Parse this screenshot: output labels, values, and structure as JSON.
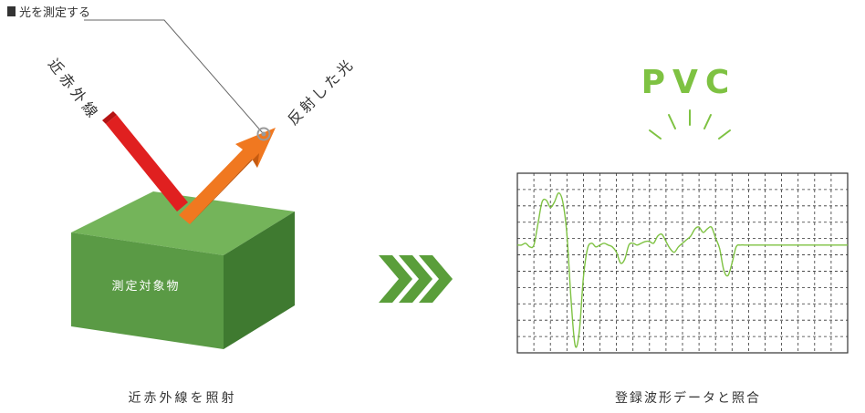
{
  "labels": {
    "measure": "光を測定する",
    "incident": "近赤外線",
    "reflected": "反射した光",
    "object": "測定対象物",
    "result": "PVC",
    "caption_left": "近赤外線を照射",
    "caption_right": "登録波形データと照合"
  },
  "colors": {
    "box_front": "#5a9a45",
    "box_top": "#74b45a",
    "box_side": "#3f7a30",
    "incident_beam": "#e02020",
    "reflected_beam": "#f07820",
    "chevrons": "#5a9e3a",
    "waveform": "#7ec242",
    "pvc_text": "#7ec242"
  },
  "chart_data": {
    "type": "line",
    "title": "",
    "xlabel": "",
    "ylabel": "",
    "series": [
      {
        "x": [
          0,
          1,
          2,
          3,
          4,
          5,
          6,
          7,
          8,
          9,
          10,
          11,
          12,
          13,
          14,
          15,
          16,
          17,
          18,
          19,
          20,
          21,
          22,
          23,
          24,
          25,
          26,
          27,
          28,
          29,
          30,
          31,
          32,
          33,
          34,
          35,
          36,
          37,
          38,
          39,
          40,
          41,
          42,
          43,
          44,
          45,
          46,
          47,
          48,
          49,
          50,
          51,
          52,
          53,
          54,
          55,
          56,
          57,
          58,
          59,
          60,
          61,
          62,
          63,
          64,
          65,
          66,
          67,
          68,
          69,
          70,
          71,
          72,
          73,
          74,
          75,
          76,
          77,
          78,
          79,
          80
        ],
        "values": [
          0.0,
          0.0,
          0.05,
          -0.05,
          0.0,
          0.6,
          1.2,
          1.25,
          1.05,
          1.2,
          1.45,
          1.2,
          0.3,
          -1.5,
          -2.8,
          -2.4,
          -0.9,
          -0.1,
          0.05,
          -0.05,
          0.0,
          0.05,
          0.0,
          -0.05,
          -0.2,
          -0.5,
          -0.4,
          0.0,
          0.05,
          0.0,
          0.05,
          0.1,
          0.1,
          0.05,
          0.25,
          0.3,
          0.1,
          -0.1,
          -0.2,
          -0.05,
          0.05,
          0.15,
          0.25,
          0.45,
          0.5,
          0.35,
          0.45,
          0.5,
          0.2,
          -0.1,
          -0.7,
          -0.85,
          -0.5,
          -0.05,
          0.0,
          0.0,
          0.0,
          0.0,
          0.0,
          0.0,
          0.0,
          0.0,
          0.0,
          0.0,
          0.0,
          0.0,
          0.0,
          0.0,
          0.0,
          0.0,
          0.0,
          0.0,
          0.0,
          0.0,
          0.0,
          0.0,
          0.0,
          0.0,
          0.0,
          0.0,
          0.0
        ]
      }
    ],
    "ylim": [
      -3,
      2
    ],
    "grid": true
  }
}
